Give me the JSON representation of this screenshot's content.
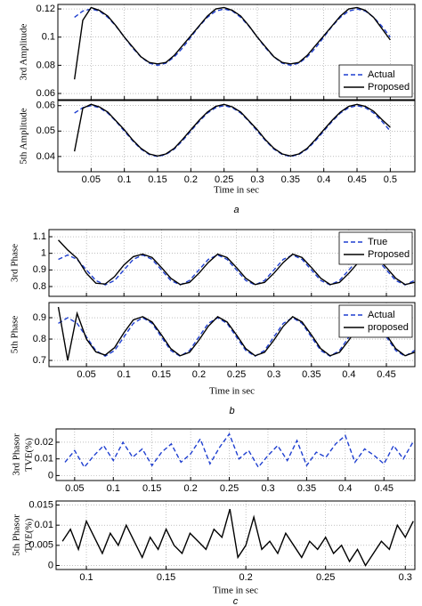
{
  "chart_data": [
    {
      "type": "line",
      "ylabel": [
        "3rd Amplitude"
      ],
      "grid": true,
      "legend": "lower right",
      "xtick_labels": false,
      "xlim": [
        0,
        0.537
      ],
      "ylim": [
        0.0556,
        0.1232
      ],
      "xticks": [
        0.05,
        0.1,
        0.15,
        0.2,
        0.25,
        0.3,
        0.35,
        0.4,
        0.45,
        0.5
      ],
      "yticks": [
        0.06,
        0.08,
        0.1,
        0.12
      ],
      "x": [
        0.025,
        0.0375,
        0.05,
        0.0625,
        0.075,
        0.0875,
        0.1,
        0.1125,
        0.125,
        0.1375,
        0.15,
        0.1625,
        0.175,
        0.1875,
        0.2,
        0.2125,
        0.225,
        0.2375,
        0.25,
        0.2625,
        0.275,
        0.2875,
        0.3,
        0.3125,
        0.325,
        0.3375,
        0.35,
        0.3625,
        0.375,
        0.3875,
        0.4,
        0.4125,
        0.425,
        0.4375,
        0.45,
        0.4625,
        0.475,
        0.4875,
        0.5
      ],
      "series": [
        {
          "name": "Actual",
          "color": "#1f3fd0",
          "dash": true,
          "values": [
            0.1141,
            0.1185,
            0.12,
            0.1185,
            0.1141,
            0.1077,
            0.1,
            0.0923,
            0.0859,
            0.0815,
            0.08,
            0.0815,
            0.0859,
            0.0923,
            0.1,
            0.1077,
            0.1141,
            0.1185,
            0.12,
            0.1185,
            0.1141,
            0.1077,
            0.1,
            0.0923,
            0.0859,
            0.0815,
            0.08,
            0.0815,
            0.0859,
            0.0923,
            0.1,
            0.1077,
            0.1141,
            0.1185,
            0.12,
            0.1185,
            0.1141,
            0.1077,
            0.1
          ]
        },
        {
          "name": "Proposed",
          "color": "#000000",
          "dash": false,
          "values": [
            0.07,
            0.112,
            0.121,
            0.119,
            0.115,
            0.108,
            0.1,
            0.093,
            0.086,
            0.082,
            0.081,
            0.082,
            0.087,
            0.094,
            0.101,
            0.108,
            0.115,
            0.12,
            0.121,
            0.119,
            0.115,
            0.108,
            0.1,
            0.093,
            0.086,
            0.082,
            0.081,
            0.082,
            0.087,
            0.094,
            0.101,
            0.108,
            0.115,
            0.12,
            0.121,
            0.119,
            0.114,
            0.106,
            0.098
          ]
        }
      ]
    },
    {
      "type": "line",
      "ylabel": [
        "5th Amplitude"
      ],
      "grid": true,
      "xlabel": "Time in sec",
      "caption": "a",
      "xlim": [
        0,
        0.537
      ],
      "ylim": [
        0.034,
        0.062
      ],
      "xticks": [
        0.05,
        0.1,
        0.15,
        0.2,
        0.25,
        0.3,
        0.35,
        0.4,
        0.45,
        0.5
      ],
      "yticks": [
        0.04,
        0.05,
        0.06
      ],
      "x": [
        0.025,
        0.0375,
        0.05,
        0.0625,
        0.075,
        0.0875,
        0.1,
        0.1125,
        0.125,
        0.1375,
        0.15,
        0.1625,
        0.175,
        0.1875,
        0.2,
        0.2125,
        0.225,
        0.2375,
        0.25,
        0.2625,
        0.275,
        0.2875,
        0.3,
        0.3125,
        0.325,
        0.3375,
        0.35,
        0.3625,
        0.375,
        0.3875,
        0.4,
        0.4125,
        0.425,
        0.4375,
        0.45,
        0.4625,
        0.475,
        0.4875,
        0.5
      ],
      "series": [
        {
          "color": "#1f3fd0",
          "dash": true,
          "values": [
            0.0571,
            0.0592,
            0.06,
            0.0592,
            0.0571,
            0.0538,
            0.05,
            0.0462,
            0.0429,
            0.0408,
            0.04,
            0.0408,
            0.0429,
            0.0462,
            0.05,
            0.0538,
            0.0571,
            0.0592,
            0.06,
            0.0592,
            0.0571,
            0.0538,
            0.05,
            0.0462,
            0.0429,
            0.0408,
            0.04,
            0.0408,
            0.0429,
            0.0462,
            0.05,
            0.0538,
            0.0571,
            0.0592,
            0.06,
            0.0592,
            0.0571,
            0.0538,
            0.05
          ]
        },
        {
          "color": "#000000",
          "dash": false,
          "values": [
            0.042,
            0.059,
            0.0605,
            0.0595,
            0.0575,
            0.054,
            0.0505,
            0.0465,
            0.0432,
            0.041,
            0.0402,
            0.041,
            0.0432,
            0.0467,
            0.0505,
            0.0542,
            0.0575,
            0.0597,
            0.0605,
            0.0595,
            0.0575,
            0.054,
            0.0505,
            0.0465,
            0.0432,
            0.041,
            0.0402,
            0.041,
            0.0432,
            0.0467,
            0.0505,
            0.0542,
            0.0575,
            0.0597,
            0.0605,
            0.0597,
            0.0578,
            0.0545,
            0.0515
          ]
        }
      ]
    },
    {
      "type": "line",
      "ylabel": [
        "3rd Phase"
      ],
      "grid": true,
      "legend": "upper right",
      "xtick_labels": false,
      "xlim": [
        0,
        0.488
      ],
      "ylim": [
        0.741,
        1.143
      ],
      "xticks": [
        0.05,
        0.1,
        0.15,
        0.2,
        0.25,
        0.3,
        0.35,
        0.4,
        0.45
      ],
      "yticks": [
        0.8,
        0.9,
        1,
        1.1
      ],
      "x": [
        0.0125,
        0.025,
        0.0375,
        0.05,
        0.0625,
        0.075,
        0.0875,
        0.1,
        0.1125,
        0.125,
        0.1375,
        0.15,
        0.1625,
        0.175,
        0.1875,
        0.2,
        0.2125,
        0.225,
        0.2375,
        0.25,
        0.2625,
        0.275,
        0.2875,
        0.3,
        0.3125,
        0.325,
        0.3375,
        0.35,
        0.3625,
        0.375,
        0.3875,
        0.4,
        0.4125,
        0.425,
        0.4375,
        0.45,
        0.4625,
        0.475,
        0.4875
      ],
      "series": [
        {
          "name": "True",
          "color": "#1f3fd0",
          "dash": true,
          "values": [
            0.9636,
            0.99,
            0.9636,
            0.9,
            0.8364,
            0.81,
            0.8364,
            0.9,
            0.9636,
            0.99,
            0.9636,
            0.9,
            0.8364,
            0.81,
            0.8364,
            0.9,
            0.9636,
            0.99,
            0.9636,
            0.9,
            0.8364,
            0.81,
            0.8364,
            0.9,
            0.9636,
            0.99,
            0.9636,
            0.9,
            0.8364,
            0.81,
            0.8364,
            0.9,
            0.9636,
            0.99,
            0.9636,
            0.9,
            0.8364,
            0.81,
            0.8364
          ]
        },
        {
          "name": "Proposed",
          "color": "#000000",
          "dash": false,
          "values": [
            1.08,
            1.02,
            0.97,
            0.88,
            0.82,
            0.815,
            0.86,
            0.93,
            0.98,
            0.995,
            0.975,
            0.915,
            0.85,
            0.812,
            0.825,
            0.88,
            0.945,
            0.995,
            0.975,
            0.915,
            0.85,
            0.812,
            0.825,
            0.88,
            0.945,
            0.995,
            0.975,
            0.915,
            0.85,
            0.812,
            0.825,
            0.88,
            0.945,
            0.995,
            0.975,
            0.915,
            0.85,
            0.812,
            0.825
          ]
        }
      ]
    },
    {
      "type": "line",
      "ylabel": [
        "5th Phase"
      ],
      "grid": true,
      "legend": "upper right",
      "xlabel": "Time in sec",
      "caption": "b",
      "xlim": [
        0,
        0.488
      ],
      "ylim": [
        0.671,
        0.971
      ],
      "xticks": [
        0.05,
        0.1,
        0.15,
        0.2,
        0.25,
        0.3,
        0.35,
        0.4,
        0.45
      ],
      "yticks": [
        0.7,
        0.8,
        0.9
      ],
      "x": [
        0.0125,
        0.025,
        0.0375,
        0.05,
        0.0625,
        0.075,
        0.0875,
        0.1,
        0.1125,
        0.125,
        0.1375,
        0.15,
        0.1625,
        0.175,
        0.1875,
        0.2,
        0.2125,
        0.225,
        0.2375,
        0.25,
        0.2625,
        0.275,
        0.2875,
        0.3,
        0.3125,
        0.325,
        0.3375,
        0.35,
        0.3625,
        0.375,
        0.3875,
        0.4,
        0.4125,
        0.425,
        0.4375,
        0.45,
        0.4625,
        0.475,
        0.4875
      ],
      "series": [
        {
          "name": "Actual",
          "color": "#1f3fd0",
          "dash": true,
          "values": [
            0.8736,
            0.9,
            0.8736,
            0.81,
            0.7464,
            0.72,
            0.7464,
            0.81,
            0.8736,
            0.9,
            0.8736,
            0.81,
            0.7464,
            0.72,
            0.7464,
            0.81,
            0.8736,
            0.9,
            0.8736,
            0.81,
            0.7464,
            0.72,
            0.7464,
            0.81,
            0.8736,
            0.9,
            0.8736,
            0.81,
            0.7464,
            0.72,
            0.7464,
            0.81,
            0.8736,
            0.9,
            0.8736,
            0.81,
            0.7464,
            0.72,
            0.7464
          ]
        },
        {
          "name": "proposed",
          "color": "#000000",
          "dash": false,
          "values": [
            0.95,
            0.7,
            0.92,
            0.8,
            0.74,
            0.725,
            0.76,
            0.83,
            0.89,
            0.905,
            0.88,
            0.82,
            0.755,
            0.722,
            0.738,
            0.795,
            0.86,
            0.905,
            0.88,
            0.82,
            0.755,
            0.722,
            0.738,
            0.795,
            0.86,
            0.905,
            0.88,
            0.82,
            0.755,
            0.722,
            0.738,
            0.795,
            0.86,
            0.905,
            0.88,
            0.82,
            0.755,
            0.722,
            0.738
          ]
        }
      ]
    },
    {
      "type": "line",
      "ylabel": [
        "3rd Phasor",
        "TVE(%)"
      ],
      "grid": true,
      "xlim": [
        0.026,
        0.49
      ],
      "ylim": [
        -0.003,
        0.028
      ],
      "xticks": [
        0.05,
        0.1,
        0.15,
        0.2,
        0.25,
        0.3,
        0.35,
        0.4,
        0.45
      ],
      "yticks": [
        0,
        0.01,
        0.02
      ],
      "x": [
        0.0375,
        0.05,
        0.0625,
        0.075,
        0.0875,
        0.1,
        0.1125,
        0.125,
        0.1375,
        0.15,
        0.1625,
        0.175,
        0.1875,
        0.2,
        0.2125,
        0.225,
        0.2375,
        0.25,
        0.2625,
        0.275,
        0.2875,
        0.3,
        0.3125,
        0.325,
        0.3375,
        0.35,
        0.3625,
        0.375,
        0.3875,
        0.4,
        0.4125,
        0.425,
        0.4375,
        0.45,
        0.4625,
        0.475,
        0.4875
      ],
      "series": [
        {
          "color": "#1f3fd0",
          "dash": true,
          "values": [
            0.008,
            0.015,
            0.005,
            0.012,
            0.018,
            0.009,
            0.02,
            0.011,
            0.016,
            0.006,
            0.014,
            0.019,
            0.008,
            0.013,
            0.022,
            0.007,
            0.017,
            0.025,
            0.01,
            0.015,
            0.005,
            0.012,
            0.018,
            0.009,
            0.021,
            0.006,
            0.014,
            0.011,
            0.019,
            0.024,
            0.008,
            0.016,
            0.012,
            0.007,
            0.018,
            0.01,
            0.02
          ]
        }
      ]
    },
    {
      "type": "line",
      "ylabel": [
        "5th Phasor",
        "TVE(%)"
      ],
      "grid": true,
      "xlabel": "Time in sec",
      "caption": "c",
      "xlim": [
        0.081,
        0.306
      ],
      "ylim": [
        -0.001,
        0.016
      ],
      "xticks": [
        0.1,
        0.15,
        0.2,
        0.25,
        0.3
      ],
      "yticks": [
        0,
        0.005,
        0.01,
        0.015
      ],
      "x": [
        0.085,
        0.09,
        0.095,
        0.1,
        0.105,
        0.11,
        0.115,
        0.12,
        0.125,
        0.13,
        0.135,
        0.14,
        0.145,
        0.15,
        0.155,
        0.16,
        0.165,
        0.17,
        0.175,
        0.18,
        0.185,
        0.19,
        0.195,
        0.2,
        0.205,
        0.21,
        0.215,
        0.22,
        0.225,
        0.23,
        0.235,
        0.24,
        0.245,
        0.25,
        0.255,
        0.26,
        0.265,
        0.27,
        0.275,
        0.28,
        0.285,
        0.29,
        0.295,
        0.3,
        0.305
      ],
      "series": [
        {
          "color": "#000000",
          "dash": false,
          "values": [
            0.006,
            0.009,
            0.004,
            0.011,
            0.007,
            0.003,
            0.008,
            0.005,
            0.01,
            0.006,
            0.002,
            0.007,
            0.004,
            0.009,
            0.005,
            0.003,
            0.008,
            0.006,
            0.004,
            0.009,
            0.007,
            0.014,
            0.002,
            0.005,
            0.012,
            0.004,
            0.006,
            0.003,
            0.008,
            0.005,
            0.002,
            0.006,
            0.004,
            0.007,
            0.003,
            0.005,
            0.001,
            0.004,
            0.0,
            0.003,
            0.006,
            0.004,
            0.01,
            0.007,
            0.011
          ]
        }
      ]
    }
  ]
}
